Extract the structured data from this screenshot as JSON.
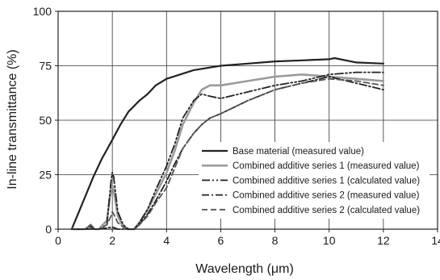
{
  "chart_data": {
    "type": "line",
    "xlabel": "Wavelength (μm)",
    "ylabel": "In-line transmittance (%)",
    "xlim": [
      0,
      14
    ],
    "ylim": [
      0,
      100
    ],
    "xticks": [
      0,
      2,
      4,
      6,
      8,
      10,
      12,
      14
    ],
    "yticks": [
      0,
      25,
      50,
      75,
      100
    ],
    "grid": true,
    "legend_position": "bottom-right",
    "series": [
      {
        "name": "Base material (measured value)",
        "color": "#222222",
        "dash": "solid",
        "width": 2.2,
        "x": [
          0.5,
          0.8,
          1.0,
          1.3,
          1.6,
          2.0,
          2.3,
          2.6,
          3.0,
          3.3,
          3.6,
          4.0,
          4.5,
          5.0,
          6.0,
          7.0,
          8.0,
          9.0,
          10.0,
          10.2,
          11.0,
          12.0
        ],
        "y": [
          0,
          9,
          15,
          24,
          32,
          41,
          48,
          54,
          59,
          62,
          66,
          69,
          71,
          73,
          75,
          76,
          77,
          77.5,
          78,
          78.5,
          76.5,
          76
        ]
      },
      {
        "name": "Combined additive series 1 (measured value)",
        "color": "#9a9a9a",
        "dash": "solid",
        "width": 2.6,
        "x": [
          0.5,
          1.0,
          1.2,
          1.35,
          1.5,
          1.8,
          1.9,
          2.0,
          2.05,
          2.2,
          2.4,
          2.6,
          2.8,
          3.0,
          3.3,
          3.6,
          4.0,
          4.3,
          4.6,
          5.0,
          5.3,
          5.6,
          6.0,
          7.0,
          8.0,
          9.0,
          10.0,
          11.0,
          12.0
        ],
        "y": [
          0,
          0,
          2,
          0,
          0,
          4,
          14,
          20,
          18,
          6,
          1,
          0,
          0,
          3,
          9,
          16,
          26,
          36,
          48,
          58,
          64,
          66,
          66,
          68,
          70,
          71,
          70,
          69,
          68
        ]
      },
      {
        "name": "Combined additive series 1 (calculated value)",
        "color": "#222222",
        "dash": "10,3,2,3,2,3",
        "width": 1.8,
        "x": [
          0.5,
          1.0,
          1.2,
          1.35,
          1.5,
          1.8,
          1.95,
          2.0,
          2.05,
          2.2,
          2.4,
          2.6,
          2.8,
          3.0,
          3.3,
          3.6,
          4.0,
          4.3,
          4.6,
          5.0,
          5.3,
          5.6,
          6.0,
          7.0,
          8.0,
          9.0,
          10.0,
          11.0,
          12.0
        ],
        "y": [
          0,
          0,
          1,
          0,
          0,
          2,
          22,
          26,
          24,
          8,
          2,
          0,
          0,
          3,
          9,
          18,
          29,
          39,
          51,
          59,
          62,
          61,
          60,
          63,
          66,
          68,
          71,
          72,
          72
        ]
      },
      {
        "name": "Combined additive series 2 (measured value)",
        "color": "#222222",
        "dash": "9,3,2,3",
        "width": 1.8,
        "x": [
          0.5,
          1.0,
          1.5,
          2.0,
          2.2,
          2.5,
          2.8,
          3.0,
          3.3,
          3.6,
          4.0,
          4.3,
          4.6,
          5.0,
          5.3,
          5.6,
          6.0,
          7.0,
          8.0,
          9.0,
          10.0,
          11.0,
          12.0
        ],
        "y": [
          0,
          0,
          0,
          1,
          0,
          0,
          0,
          2,
          7,
          13,
          22,
          30,
          37,
          44,
          48,
          51,
          53,
          59,
          64,
          67,
          70,
          67,
          64
        ]
      },
      {
        "name": "Combined additive series 2 (calculated value)",
        "color": "#555555",
        "dash": "7,4",
        "width": 1.8,
        "x": [
          0.5,
          1.0,
          1.2,
          1.35,
          1.5,
          1.8,
          1.95,
          2.0,
          2.05,
          2.2,
          2.4,
          2.6,
          2.8,
          3.0,
          3.3,
          3.6,
          4.0,
          4.3,
          4.6,
          5.0,
          5.3,
          5.6,
          6.0,
          7.0,
          8.0,
          9.0,
          10.0,
          11.0,
          12.0
        ],
        "y": [
          0,
          0,
          2,
          0,
          0,
          2,
          6,
          8,
          7,
          3,
          1,
          0,
          0,
          2,
          6,
          12,
          19,
          28,
          37,
          44,
          48,
          51,
          53,
          59,
          64,
          67,
          69,
          68,
          66
        ]
      }
    ]
  }
}
